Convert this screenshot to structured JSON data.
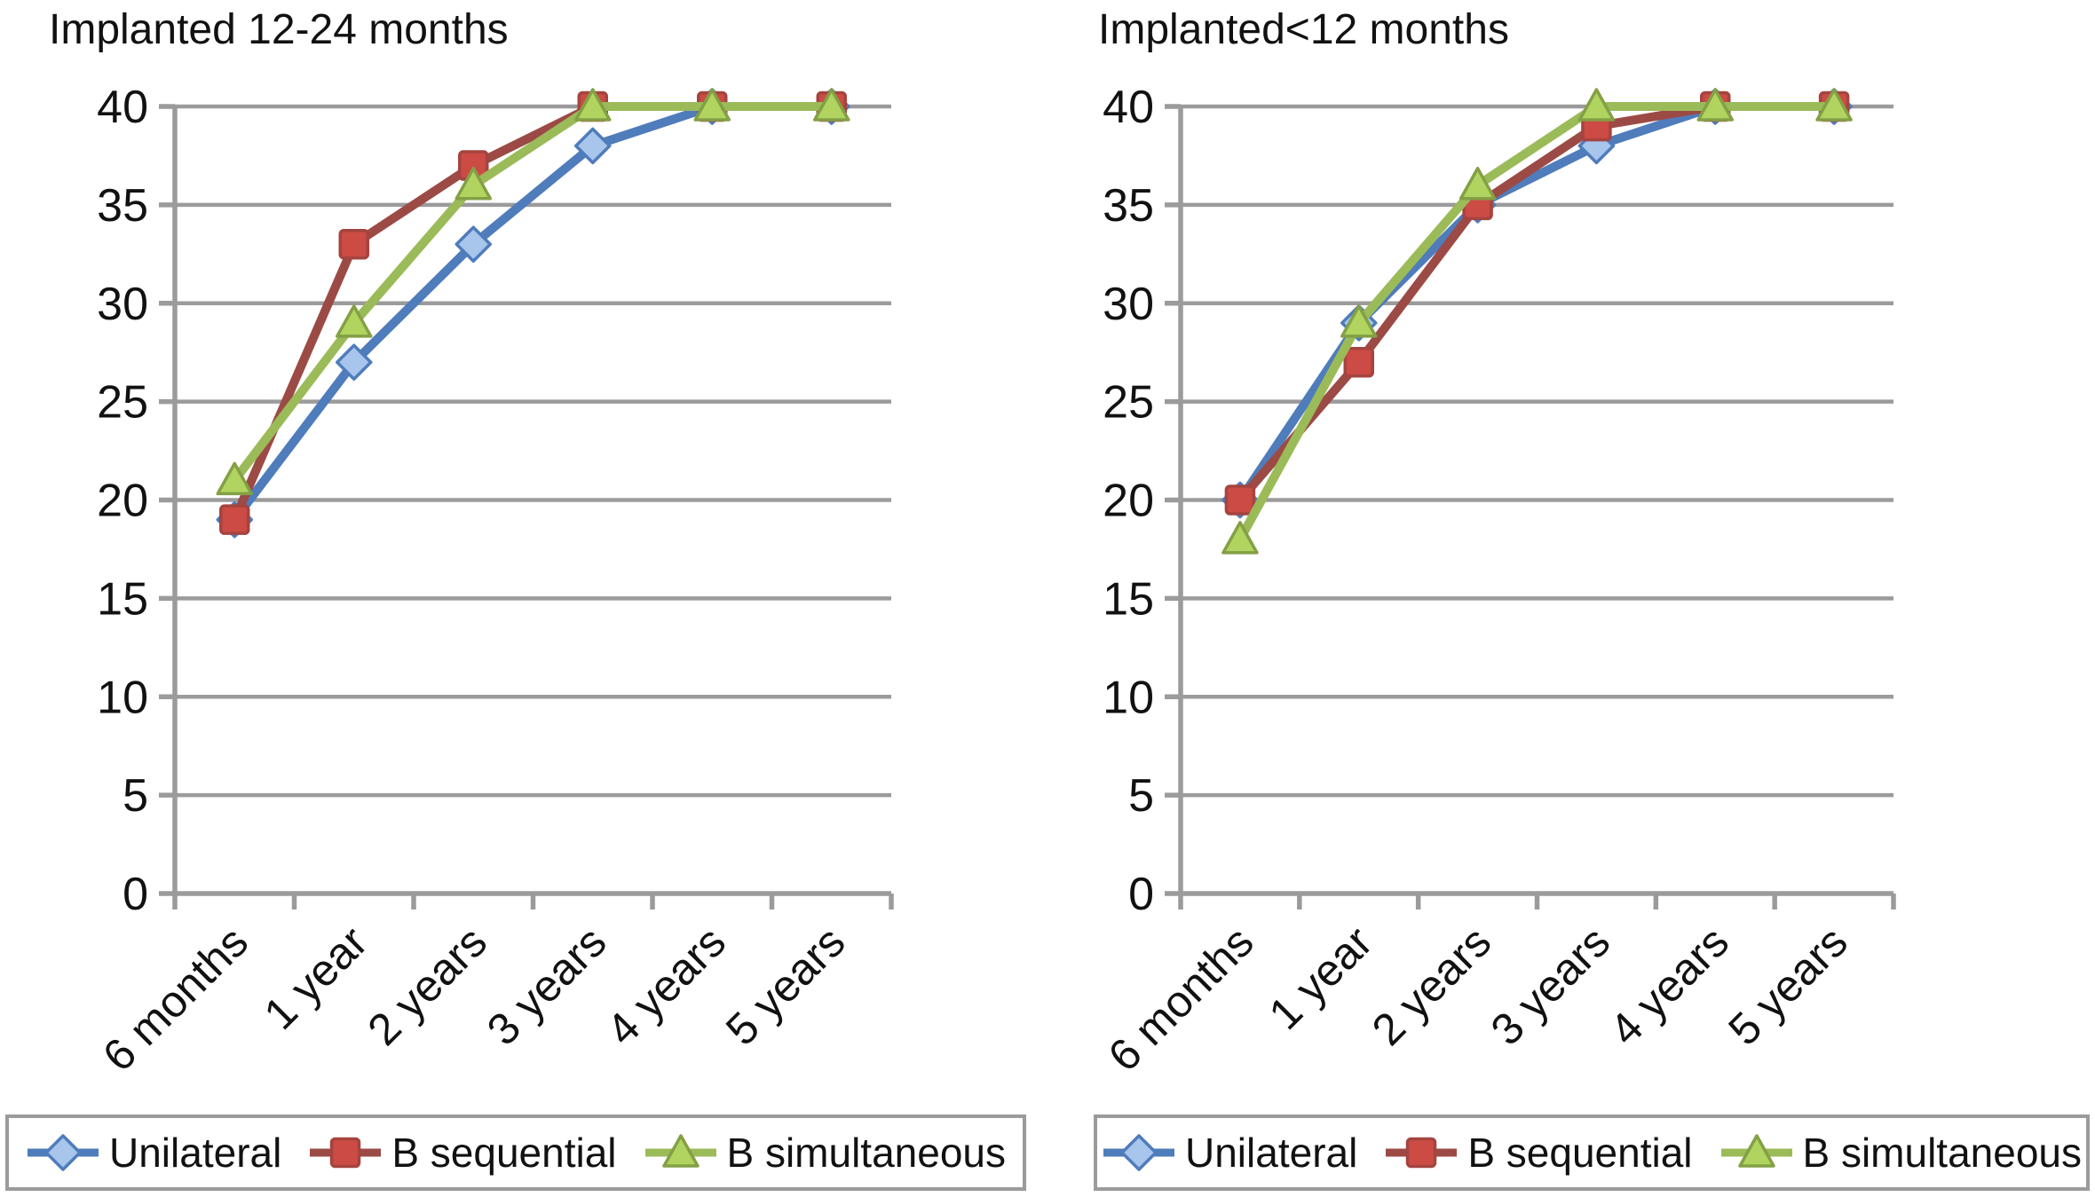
{
  "figure": {
    "background": "#FFFFFF",
    "palette": {
      "grid": "#9B9B9B",
      "axis": "#9B9B9B",
      "text": "#111111",
      "legend_border": "#9B9B9B"
    }
  },
  "chart_data": [
    {
      "type": "line",
      "title": "Implanted 12-24 months",
      "categories": [
        "6 months",
        "1 year",
        "2 years",
        "3 years",
        "4 years",
        "5 years"
      ],
      "series": [
        {
          "name": "Unilateral",
          "marker": "diamond",
          "line_color": "#4F7CBB",
          "fill_color": "#A8C5EC",
          "edge_color": "#4F7CBB",
          "values": [
            19,
            27,
            33,
            38,
            40,
            40
          ]
        },
        {
          "name": "B sequential",
          "marker": "square",
          "line_color": "#9C4A45",
          "fill_color": "#CC4B45",
          "edge_color": "#A5443F",
          "values": [
            19,
            33,
            37,
            40,
            40,
            40
          ]
        },
        {
          "name": "B simultaneous",
          "marker": "triangle",
          "line_color": "#9BBB59",
          "fill_color": "#B0D45F",
          "edge_color": "#83A045",
          "values": [
            21,
            29,
            36,
            40,
            40,
            40
          ]
        }
      ],
      "ylim": [
        0,
        40
      ],
      "yticks": [
        0,
        5,
        10,
        15,
        20,
        25,
        30,
        35,
        40
      ],
      "grid": "horizontal",
      "legend_position": "bottom"
    },
    {
      "type": "line",
      "title": "Implanted<12 months",
      "categories": [
        "6 months",
        "1 year",
        "2 years",
        "3 years",
        "4 years",
        "5 years"
      ],
      "series": [
        {
          "name": "Unilateral",
          "marker": "diamond",
          "line_color": "#4F7CBB",
          "fill_color": "#A8C5EC",
          "edge_color": "#4F7CBB",
          "values": [
            20,
            29,
            35,
            38,
            40,
            40
          ]
        },
        {
          "name": "B sequential",
          "marker": "square",
          "line_color": "#9C4A45",
          "fill_color": "#CC4B45",
          "edge_color": "#A5443F",
          "values": [
            20,
            27,
            35,
            39,
            40,
            40
          ]
        },
        {
          "name": "B simultaneous",
          "marker": "triangle",
          "line_color": "#9BBB59",
          "fill_color": "#B0D45F",
          "edge_color": "#83A045",
          "values": [
            18,
            29,
            36,
            40,
            40,
            40
          ]
        }
      ],
      "ylim": [
        0,
        40
      ],
      "yticks": [
        0,
        5,
        10,
        15,
        20,
        25,
        30,
        35,
        40
      ],
      "grid": "horizontal",
      "legend_position": "bottom"
    }
  ]
}
